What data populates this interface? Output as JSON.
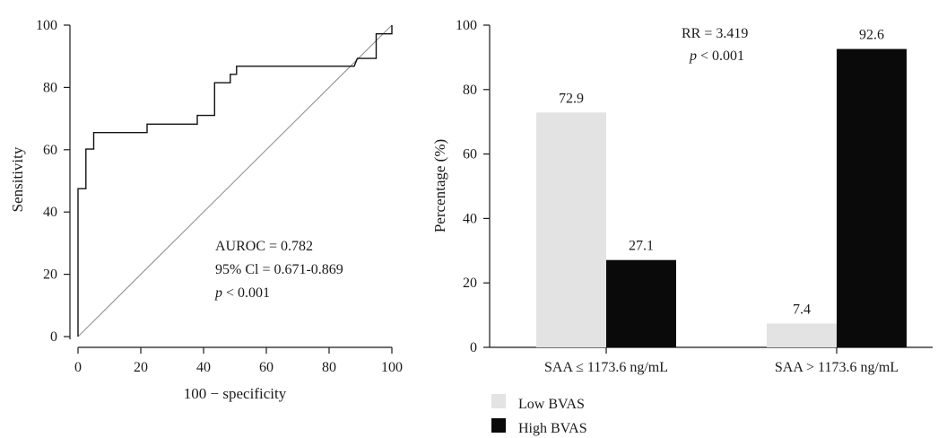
{
  "chart_data": [
    {
      "type": "line",
      "xlabel": "100 − specificity",
      "ylabel": "Sensitivity",
      "xlim": [
        0,
        100
      ],
      "ylim": [
        0,
        100
      ],
      "x_ticks": [
        "0",
        "20",
        "40",
        "60",
        "80",
        "100"
      ],
      "y_ticks": [
        "0",
        "20",
        "40",
        "60",
        "80",
        "100"
      ],
      "grid": false,
      "series": [
        {
          "x": [
            0,
            0,
            0.3,
            2.5,
            2.5,
            5,
            5,
            22,
            22,
            38,
            38,
            43.5,
            43.5,
            48.5,
            48.5,
            50.5,
            50.5,
            88,
            88,
            89,
            89,
            95,
            95,
            100,
            100
          ],
          "y": [
            0,
            47.5,
            47.5,
            47.5,
            60.2,
            60.2,
            65.5,
            65.5,
            68.2,
            68.2,
            71,
            71,
            81.5,
            81.5,
            84.2,
            84.2,
            86.8,
            86.8,
            86.8,
            89.3,
            89.3,
            89.3,
            97.2,
            97.2,
            100
          ]
        },
        {
          "x": [
            0,
            100
          ],
          "y": [
            0,
            100
          ]
        }
      ],
      "annotations": [
        "AUROC = 0.782",
        "95% Cl = 0.671-0.869",
        "p < 0.001"
      ]
    },
    {
      "type": "bar",
      "categories": [
        "SAA ≤ 1173.6 ng/mL",
        "SAA > 1173.6 ng/mL"
      ],
      "series": [
        {
          "name": "Low BVAS",
          "values": [
            72.9,
            7.4
          ],
          "color": "#e3e3e3"
        },
        {
          "name": "High BVAS",
          "values": [
            27.1,
            92.6
          ],
          "color": "#0a0a0a"
        }
      ],
      "value_labels": [
        "72.9",
        "7.4",
        "27.1",
        "92.6"
      ],
      "xlabel": "",
      "ylabel": "Percentage (%)",
      "ylim": [
        0,
        100
      ],
      "y_ticks": [
        "0",
        "20",
        "40",
        "60",
        "80",
        "100"
      ],
      "grid": false,
      "legend_placement": "bottom-left",
      "annotations": [
        "RR = 3.419",
        "p < 0.001"
      ]
    }
  ]
}
